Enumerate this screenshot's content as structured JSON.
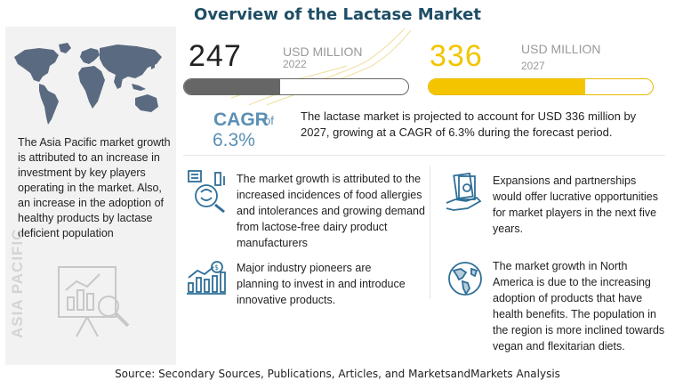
{
  "title": "Overview of the Lactase Market",
  "source": "Source: Secondary Sources, Publications, Articles, and MarketsandMarkets Analysis",
  "colors": {
    "title": "#1e4e66",
    "bar_2022": "#666666",
    "bar_2027": "#f5c400",
    "cagr": "#5b8fb5",
    "map": "#5a6a80"
  },
  "region": {
    "label": "ASIA PACIFIC",
    "text": "The Asia Pacific market growth is attributed to an increase in investment by key players operating in the market. Also, an increase in the adoption of healthy products by lactase deficient population"
  },
  "market_2022": {
    "value": "247",
    "unit": "USD MILLION",
    "year": "2022"
  },
  "market_2027": {
    "value": "336",
    "unit": "USD MILLION",
    "year": "2027"
  },
  "cagr": {
    "label": "CAGR",
    "of": "of",
    "value": "6.3%"
  },
  "summary": "The lactase market is projected to account for USD 336 million by 2027, growing at a CAGR of 6.3% during the forecast period.",
  "points": [
    {
      "text": "The market growth is attributed to the increased incidences of food allergies and intolerances and growing demand from lactose-free dairy product manufacturers",
      "icon": "food-allergy-icon"
    },
    {
      "text": "Major industry pioneers are planning to invest in and introduce innovative products.",
      "icon": "investment-growth-icon"
    },
    {
      "text": "Expansions and partnerships would offer lucrative opportunities for market players in the next five years.",
      "icon": "money-hand-icon"
    },
    {
      "text": "The market growth in North America is due to the increasing adoption of products that have health benefits. The population in the region is more inclined towards vegan and flexitarian diets.",
      "icon": "globe-americas-icon"
    }
  ],
  "chart_data": {
    "type": "bar",
    "categories": [
      "2022",
      "2027"
    ],
    "values": [
      247,
      336
    ],
    "title": "Overview of the Lactase Market",
    "ylabel": "USD MILLION",
    "cagr_percent": 6.3,
    "bar_fill_fraction": [
      0.43,
      0.7
    ]
  }
}
